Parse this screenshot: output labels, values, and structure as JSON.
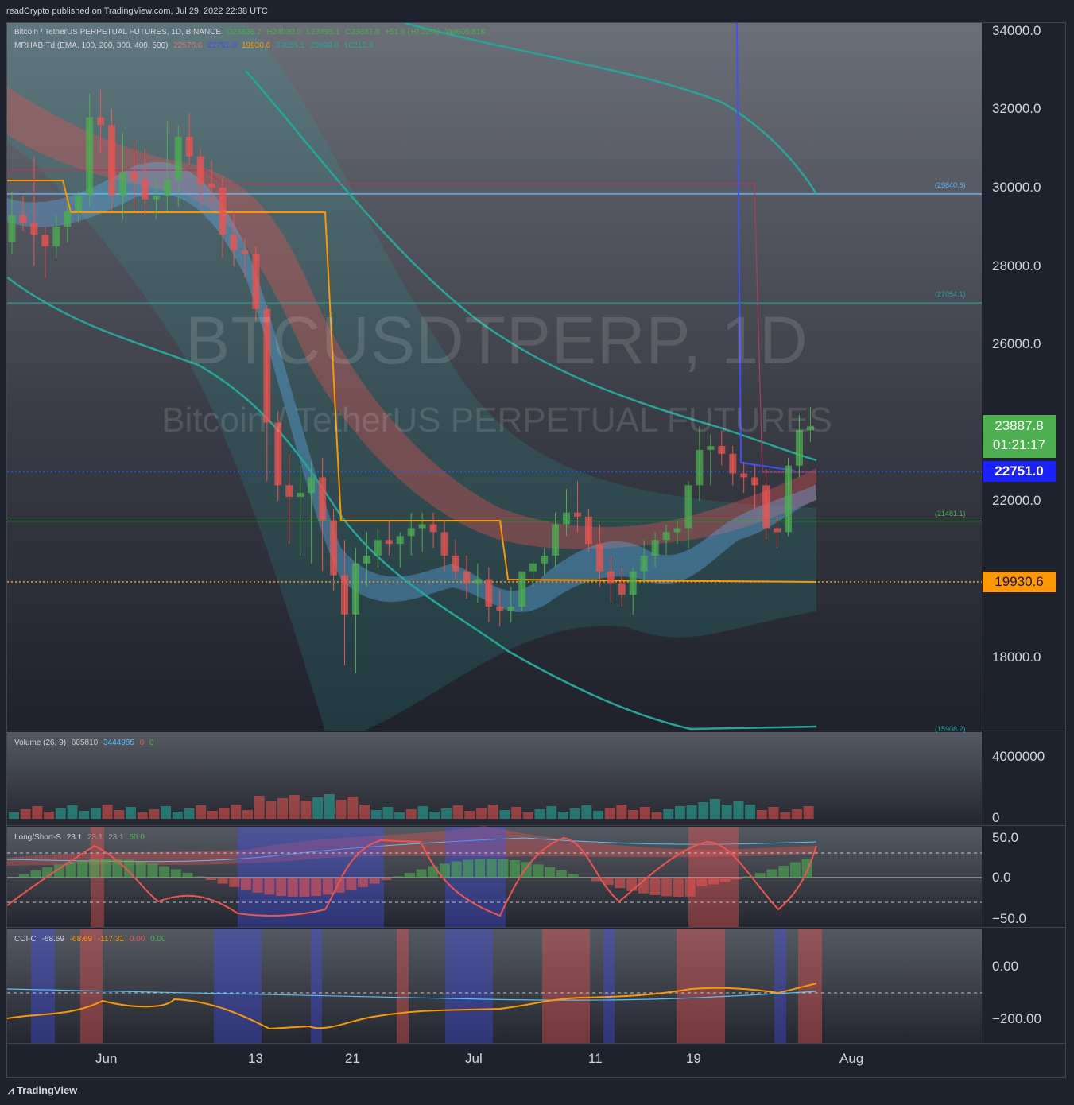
{
  "header": {
    "published": "readCrypto published on TradingView.com, Jul 29, 2022 22:38 UTC"
  },
  "main": {
    "symbol_line": {
      "title": "Bitcoin / TetherUS PERPETUAL FUTURES, 1D, BINANCE",
      "o": "O23836.2",
      "h": "H24030.0",
      "l": "L23495.1",
      "c": "C23887.8",
      "chg": "+51.6 (+0.22%)",
      "vol": "Vol605.81K"
    },
    "indicator_line": {
      "name": "MRHAB-Td (EMA, 100, 200, 300, 400, 500)",
      "v1": "22570.6",
      "v2": "22751.0",
      "v3": "19930.6",
      "v4": "23055.1",
      "v5": "29898.0",
      "v6": "16212.3"
    },
    "watermark": {
      "line1": "BTCUSDTPERP, 1D",
      "line2": "Bitcoin / TetherUS PERPETUAL FUTURES"
    },
    "y_ticks": [
      "34000.0",
      "32000.0",
      "30000.0",
      "28000.0",
      "26000.0",
      "22000.0",
      "18000.0"
    ],
    "level_labels": {
      "l29840": "(29840.6)",
      "l27054": "(27054.1)",
      "l21481": "(21481.1)",
      "l15908": "(15908.2)"
    },
    "last_price": "23887.8",
    "countdown": "01:21:17",
    "tag_blue": "22751.0",
    "tag_orange": "19930.6"
  },
  "volume": {
    "legend": {
      "name": "Volume (26, 9)",
      "v1": "605810",
      "v2": "3444985",
      "v3": "0",
      "v4": "0"
    },
    "y_ticks": [
      "4000000",
      "0"
    ]
  },
  "ls": {
    "legend": {
      "name": "Long/Short-S",
      "v1": "23.1",
      "v2": "23.1",
      "v3": "23.1",
      "v4": "50.0"
    },
    "y_ticks": [
      "50.0",
      "0.0",
      "−50.0"
    ]
  },
  "cci": {
    "legend": {
      "name": "CCI-C",
      "v1": "-68.69",
      "v2": "-68.69",
      "v3": "-117.31",
      "v4": "0.00",
      "v5": "0.00"
    },
    "y_ticks": [
      "0.00",
      "−200.00"
    ]
  },
  "x_ticks": [
    "Jun",
    "13",
    "21",
    "Jul",
    "11",
    "19",
    "Aug"
  ],
  "footer": {
    "brand": "TradingView"
  },
  "colors": {
    "up": "#4caf50",
    "down": "#ef5350",
    "teal": "#26a69a",
    "blue": "#2962ff",
    "orange": "#ff9800",
    "sky": "#64b5f6"
  }
}
